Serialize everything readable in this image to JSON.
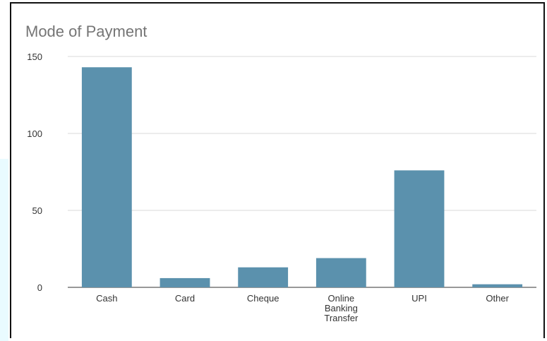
{
  "chart_data": {
    "type": "bar",
    "title": "Mode of Payment",
    "xlabel": "",
    "ylabel": "",
    "categories": [
      "Cash",
      "Card",
      "Cheque",
      "Online Banking Transfer",
      "UPI",
      "Other"
    ],
    "category_lines": [
      [
        "Cash"
      ],
      [
        "Card"
      ],
      [
        "Cheque"
      ],
      [
        "Online",
        "Banking",
        "Transfer"
      ],
      [
        "UPI"
      ],
      [
        "Other"
      ]
    ],
    "values": [
      143,
      6,
      13,
      19,
      76,
      2
    ],
    "ylim": [
      0,
      150
    ],
    "yticks": [
      "0",
      "50",
      "100",
      "150"
    ],
    "grid": true,
    "legend": "none",
    "colors": {
      "bar": "#5b91ad",
      "gridline": "#d9d9d9",
      "title": "#757575"
    }
  }
}
